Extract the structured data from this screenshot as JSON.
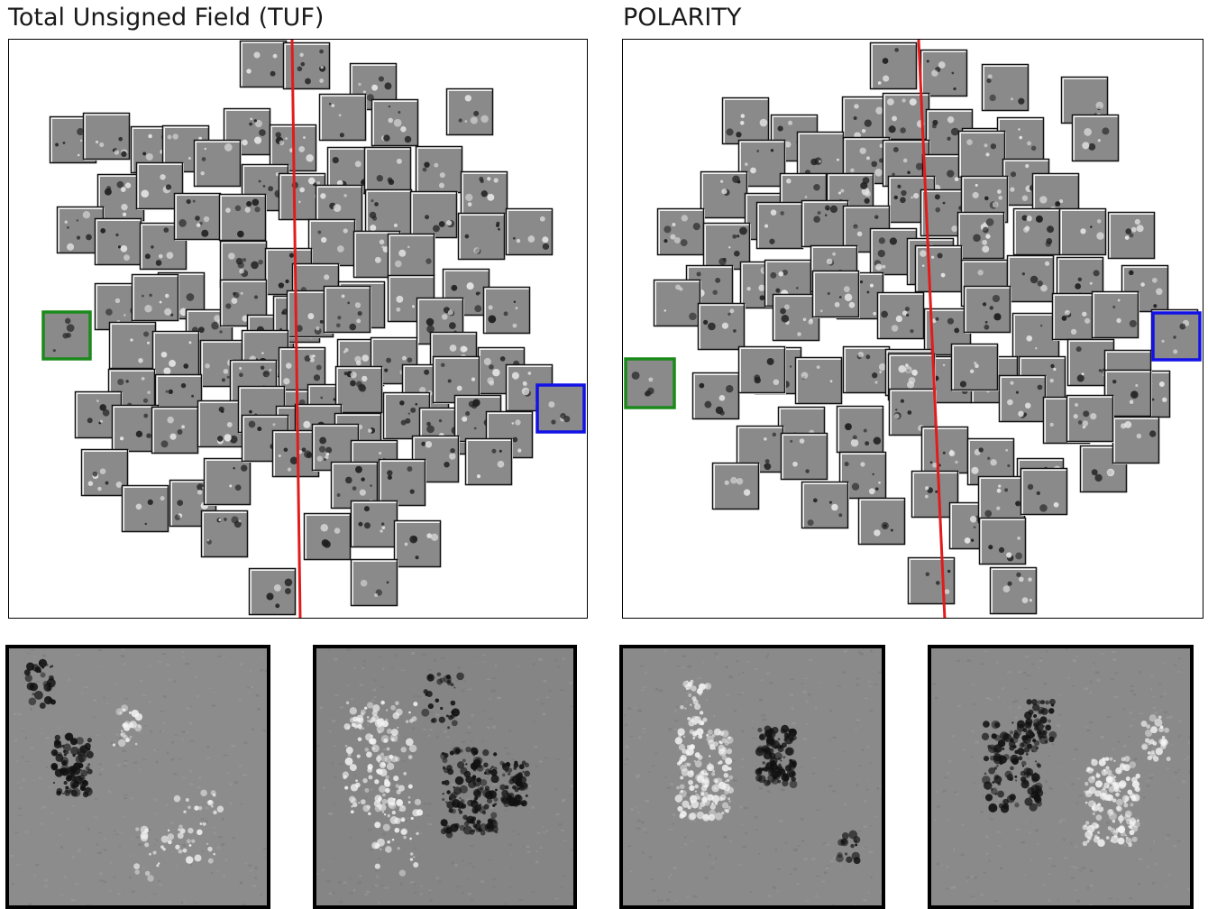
{
  "panels": [
    {
      "title": "Total Unsigned Field (TUF)",
      "highlights": {
        "green": "#1b8a1b",
        "blue": "#1212e6"
      },
      "divider_color": "#e21b1b"
    },
    {
      "title": "POLARITY",
      "highlights": {
        "green": "#1b8a1b",
        "blue": "#1212e6"
      },
      "divider_color": "#e21b1b"
    }
  ],
  "zooms": [
    {
      "panel": "Total Unsigned Field (TUF)",
      "frame": "green",
      "color": "#1b8a1b"
    },
    {
      "panel": "Total Unsigned Field (TUF)",
      "frame": "blue",
      "color": "#1212e6"
    },
    {
      "panel": "POLARITY",
      "frame": "green",
      "color": "#1b8a1b"
    },
    {
      "panel": "POLARITY",
      "frame": "blue",
      "color": "#1212e6"
    }
  ],
  "colors": {
    "tile_fill": "#8a8a8a",
    "tile_border": "#111111",
    "background": "#ffffff"
  }
}
